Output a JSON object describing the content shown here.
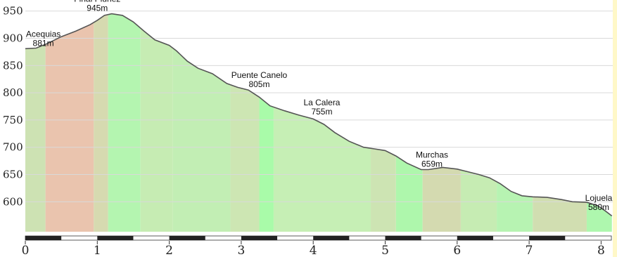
{
  "chart_data": {
    "type": "area",
    "title": "",
    "xlabel": "",
    "ylabel": "",
    "xlim": [
      0,
      8.15
    ],
    "ylim": [
      545,
      950
    ],
    "yticks": [
      950,
      900,
      850,
      800,
      750,
      700,
      650,
      600
    ],
    "xticks": [
      0,
      1,
      2,
      3,
      4,
      5,
      6,
      7,
      8
    ],
    "grid": true,
    "profile": {
      "x": [
        0,
        0.15,
        0.3,
        0.5,
        0.7,
        0.9,
        1.0,
        1.1,
        1.2,
        1.35,
        1.5,
        1.65,
        1.8,
        2.0,
        2.1,
        2.25,
        2.4,
        2.6,
        2.8,
        2.95,
        3.1,
        3.25,
        3.4,
        3.6,
        3.8,
        4.0,
        4.15,
        4.3,
        4.5,
        4.7,
        4.85,
        5.0,
        5.15,
        5.3,
        5.5,
        5.6,
        5.8,
        6.0,
        6.15,
        6.3,
        6.45,
        6.6,
        6.75,
        6.9,
        7.05,
        7.25,
        7.45,
        7.6,
        7.8,
        7.95,
        8.05,
        8.15
      ],
      "y": [
        881,
        882,
        890,
        903,
        913,
        925,
        933,
        942,
        945,
        942,
        930,
        913,
        897,
        887,
        877,
        858,
        845,
        835,
        817,
        810,
        805,
        792,
        776,
        767,
        759,
        752,
        742,
        727,
        711,
        700,
        697,
        694,
        684,
        671,
        659,
        659,
        663,
        660,
        655,
        650,
        644,
        633,
        619,
        611,
        609,
        608,
        604,
        600,
        599,
        593,
        584,
        574
      ]
    },
    "slope_bands": [
      {
        "x0": 0.0,
        "x1": 0.28,
        "color": "#cde2b3"
      },
      {
        "x0": 0.28,
        "x1": 0.95,
        "color": "#eac4ae"
      },
      {
        "x0": 0.95,
        "x1": 1.15,
        "color": "#d6dab0"
      },
      {
        "x0": 1.15,
        "x1": 1.6,
        "color": "#b4f5b0"
      },
      {
        "x0": 1.6,
        "x1": 2.05,
        "color": "#c6ecb3"
      },
      {
        "x0": 2.05,
        "x1": 2.85,
        "color": "#c2eeb4"
      },
      {
        "x0": 2.85,
        "x1": 3.25,
        "color": "#cde6b3"
      },
      {
        "x0": 3.25,
        "x1": 3.45,
        "color": "#a9fba9"
      },
      {
        "x0": 3.45,
        "x1": 4.8,
        "color": "#c6efb5"
      },
      {
        "x0": 4.8,
        "x1": 5.15,
        "color": "#cde4b3"
      },
      {
        "x0": 5.15,
        "x1": 5.52,
        "color": "#aef7ac"
      },
      {
        "x0": 5.52,
        "x1": 6.05,
        "color": "#d4dab0"
      },
      {
        "x0": 6.05,
        "x1": 6.55,
        "color": "#c6ecb3"
      },
      {
        "x0": 6.55,
        "x1": 7.05,
        "color": "#b7f3b2"
      },
      {
        "x0": 7.05,
        "x1": 7.8,
        "color": "#d1deb1"
      },
      {
        "x0": 7.8,
        "x1": 8.15,
        "color": "#aef7ae"
      }
    ],
    "waypoints": [
      {
        "name": "Acequias",
        "elevation": "881m",
        "x": 0.25,
        "y": 881
      },
      {
        "name": "Final Plúnez",
        "elevation": "945m",
        "x": 1.0,
        "y": 945
      },
      {
        "name": "Puente Canelo",
        "elevation": "805m",
        "x": 3.25,
        "y": 805
      },
      {
        "name": "La Calera",
        "elevation": "755m",
        "x": 4.12,
        "y": 755
      },
      {
        "name": "Murchas",
        "elevation": "659m",
        "x": 5.65,
        "y": 659
      },
      {
        "name": "Lojuela",
        "elevation": "580m",
        "x": 8.1,
        "y": 580
      }
    ]
  }
}
